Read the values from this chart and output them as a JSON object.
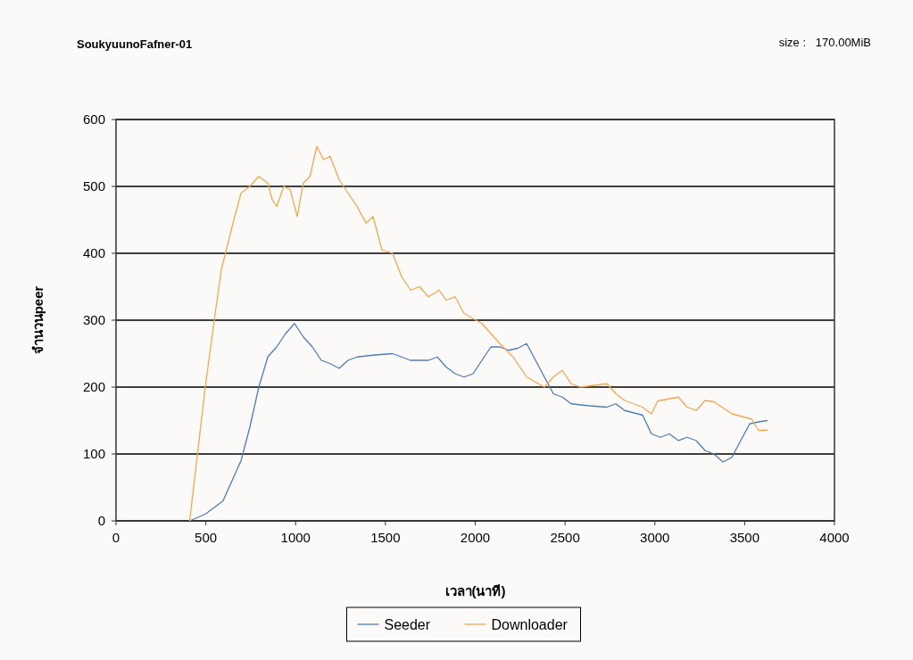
{
  "chart_data": {
    "type": "line",
    "title": "SoukyuunoFafner-01",
    "annotations": [
      "size :   170.00MiB"
    ],
    "xlabel": "เวลา(นาที)",
    "ylabel": "จำนวนpeer",
    "xlim": [
      0,
      4000
    ],
    "xticks": [
      0,
      500,
      1000,
      1500,
      2000,
      2500,
      3000,
      3500,
      4000
    ],
    "ylim": [
      0,
      600
    ],
    "yticks": [
      0,
      100,
      200,
      300,
      400,
      500,
      600
    ],
    "grid": "y",
    "legend": "bottom",
    "marker": "none",
    "line_style": "solid",
    "series": [
      {
        "name": "Seeder",
        "color": "#4f7db5",
        "x": [
          410,
          497,
          547,
          596,
          646,
          696,
          745,
          795,
          845,
          894,
          944,
          994,
          1043,
          1093,
          1143,
          1193,
          1242,
          1292,
          1342,
          1441,
          1540,
          1590,
          1640,
          1739,
          1789,
          1838,
          1888,
          1938,
          1988,
          2037,
          2087,
          2137,
          2186,
          2236,
          2286,
          2336,
          2385,
          2435,
          2485,
          2534,
          2634,
          2733,
          2783,
          2832,
          2932,
          2981,
          3031,
          3081,
          3131,
          3180,
          3230,
          3280,
          3329,
          3379,
          3429,
          3478,
          3528,
          3578,
          3627
        ],
        "values": [
          0,
          10,
          20,
          30,
          60,
          90,
          140,
          200,
          245,
          260,
          280,
          295,
          275,
          260,
          240,
          235,
          228,
          240,
          245,
          248,
          250,
          245,
          240,
          240,
          245,
          230,
          220,
          215,
          220,
          240,
          260,
          260,
          255,
          258,
          265,
          240,
          215,
          190,
          185,
          175,
          172,
          170,
          175,
          165,
          158,
          130,
          125,
          130,
          120,
          125,
          120,
          105,
          100,
          88,
          95,
          120,
          145,
          148,
          150
        ]
      },
      {
        "name": "Downloader",
        "color": "#f0a850",
        "x": [
          410,
          497,
          547,
          586,
          656,
          696,
          745,
          795,
          845,
          870,
          895,
          934,
          970,
          1009,
          1043,
          1080,
          1118,
          1155,
          1192,
          1242,
          1292,
          1342,
          1392,
          1431,
          1481,
          1540,
          1590,
          1640,
          1690,
          1739,
          1799,
          1838,
          1888,
          1938,
          2037,
          2137,
          2211,
          2286,
          2385,
          2435,
          2485,
          2534,
          2584,
          2733,
          2783,
          2832,
          2932,
          2981,
          3016,
          3031,
          3131,
          3180,
          3230,
          3280,
          3329,
          3429,
          3540,
          3578,
          3627
        ],
        "values": [
          0,
          200,
          300,
          375,
          450,
          490,
          500,
          515,
          505,
          480,
          470,
          500,
          495,
          455,
          505,
          515,
          560,
          540,
          545,
          510,
          490,
          470,
          445,
          455,
          405,
          400,
          365,
          345,
          350,
          335,
          345,
          330,
          335,
          310,
          295,
          265,
          245,
          215,
          200,
          215,
          225,
          205,
          200,
          205,
          190,
          180,
          170,
          160,
          179,
          180,
          185,
          170,
          165,
          180,
          178,
          160,
          152,
          135,
          136
        ]
      }
    ]
  }
}
